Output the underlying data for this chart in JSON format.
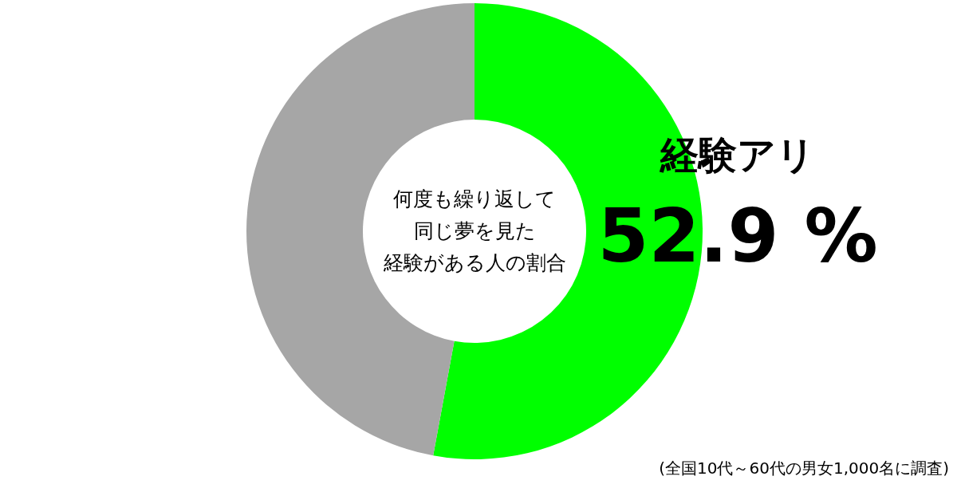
{
  "chart_data": {
    "type": "donut",
    "title": "何度も繰り返して同じ夢を見た経験がある人の割合",
    "categories": [
      "経験アリ",
      null
    ],
    "values": [
      52.9,
      47.1
    ],
    "colors": [
      "#00ff00",
      "#a6a6a6"
    ],
    "value_labels": [
      "52.9 %",
      null
    ],
    "annotations": [
      "(全国10代～60代の男女1,000名に調査)"
    ]
  }
}
